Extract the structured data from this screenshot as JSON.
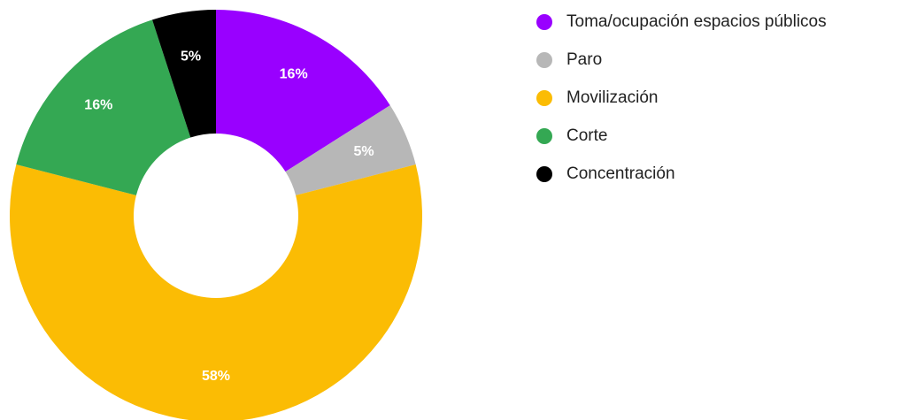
{
  "chart_data": {
    "type": "pie",
    "categories": [
      "Toma/ocupación espacios públicos",
      "Paro",
      "Movilización",
      "Corte",
      "Concentración"
    ],
    "values": [
      16,
      5,
      58,
      16,
      5
    ],
    "value_labels": [
      "16%",
      "5%",
      "58%",
      "16%",
      "5%"
    ],
    "colors": [
      "#9900ff",
      "#b7b7b7",
      "#fbbc04",
      "#34a853",
      "#000000"
    ],
    "legend": "right"
  }
}
